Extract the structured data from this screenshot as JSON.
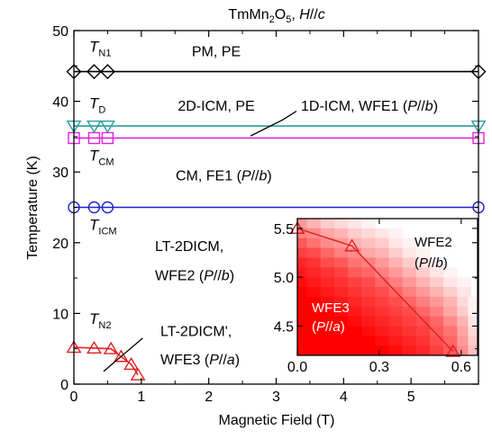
{
  "chart_data": [
    {
      "type": "scatter",
      "title": "TmMn2O5, H//c",
      "title_parts": [
        {
          "text": "TmMn",
          "style": "normal"
        },
        {
          "text": "2",
          "style": "sub"
        },
        {
          "text": "O",
          "style": "normal"
        },
        {
          "text": "5",
          "style": "sub"
        },
        {
          "text": ", ",
          "style": "normal"
        },
        {
          "text": "H",
          "style": "italic"
        },
        {
          "text": "//",
          "style": "normal"
        },
        {
          "text": "c",
          "style": "italic"
        }
      ],
      "xlabel": "Magnetic Field (T)",
      "ylabel": "Temperature (K)",
      "xlim": [
        0,
        6
      ],
      "ylim": [
        0,
        50
      ],
      "xticks": [
        "0",
        "1",
        "2",
        "3",
        "4",
        "5"
      ],
      "yticks": [
        "0",
        "10",
        "20",
        "30",
        "40",
        "50"
      ],
      "grid": false,
      "series": [
        {
          "key": "TN1",
          "marker": "diamond",
          "color": "#000000",
          "x": [
            0,
            0.3,
            0.5,
            6
          ],
          "y": [
            44.2,
            44.2,
            44.2,
            44.2
          ]
        },
        {
          "key": "TD",
          "marker": "triangle-down",
          "color": "#2a9d9d",
          "x": [
            0,
            0.3,
            0.5,
            6
          ],
          "y": [
            36.5,
            36.5,
            36.5,
            36.5
          ]
        },
        {
          "key": "TCM",
          "marker": "square",
          "color": "#e020e0",
          "x": [
            0,
            0.3,
            0.5,
            6
          ],
          "y": [
            34.8,
            34.8,
            34.8,
            34.8
          ]
        },
        {
          "key": "TICM",
          "marker": "circle",
          "color": "#2020d0",
          "x": [
            0,
            0.3,
            0.5,
            6
          ],
          "y": [
            25,
            25,
            25,
            25
          ]
        },
        {
          "key": "TN2",
          "marker": "triangle-up",
          "color": "#e02020",
          "x": [
            0,
            0.3,
            0.55,
            0.7,
            0.85,
            0.95
          ],
          "y": [
            5.2,
            5.1,
            5.0,
            3.9,
            2.8,
            1.3
          ]
        }
      ],
      "transition_labels": {
        "TN1": {
          "main": "T",
          "sub": "N1"
        },
        "TD": {
          "main": "T",
          "sub": "D"
        },
        "TCM": {
          "main": "T",
          "sub": "CM"
        },
        "TICM": {
          "main": "T",
          "sub": "ICM"
        },
        "TN2": {
          "main": "T",
          "sub": "N2"
        }
      },
      "phase_labels": {
        "pm_pe": [
          {
            "t": "PM, PE",
            "s": "normal"
          }
        ],
        "icm2d_pe": [
          {
            "t": "2D-ICM, PE",
            "s": "normal"
          }
        ],
        "icm1d": [
          {
            "t": "1D-ICM, WFE1 (",
            "s": "normal"
          },
          {
            "t": "P",
            "s": "italic"
          },
          {
            "t": "//",
            "s": "normal"
          },
          {
            "t": "b",
            "s": "italic"
          },
          {
            "t": ")",
            "s": "normal"
          }
        ],
        "cm_fe1": [
          {
            "t": "CM, FE1 (",
            "s": "normal"
          },
          {
            "t": "P",
            "s": "italic"
          },
          {
            "t": "//",
            "s": "normal"
          },
          {
            "t": "b",
            "s": "italic"
          },
          {
            "t": ")",
            "s": "normal"
          }
        ],
        "lt2dicm_1": [
          {
            "t": "LT-2DICM,",
            "s": "normal"
          }
        ],
        "lt2dicm_2": [
          {
            "t": "WFE2 (",
            "s": "normal"
          },
          {
            "t": "P",
            "s": "italic"
          },
          {
            "t": "//",
            "s": "normal"
          },
          {
            "t": "b",
            "s": "italic"
          },
          {
            "t": ")",
            "s": "normal"
          }
        ],
        "lt2dicmp_1": [
          {
            "t": "LT-2DICM',",
            "s": "normal"
          }
        ],
        "lt2dicmp_2": [
          {
            "t": "WFE3 (",
            "s": "normal"
          },
          {
            "t": "P",
            "s": "italic"
          },
          {
            "t": "//",
            "s": "normal"
          },
          {
            "t": "a",
            "s": "italic"
          },
          {
            "t": ")",
            "s": "normal"
          }
        ]
      }
    },
    {
      "type": "heatmap",
      "role": "inset",
      "xlim": [
        0,
        0.66
      ],
      "ylim": [
        4.2,
        5.6
      ],
      "xticks": [
        "0.0",
        "0.3",
        "0.6"
      ],
      "yticks": [
        "4.5",
        "5.0",
        "5.5"
      ],
      "colormap": {
        "low": "#ffffff",
        "high": "#ff0000"
      },
      "x_centers": [
        0.01,
        0.06,
        0.11,
        0.16,
        0.21,
        0.26,
        0.31,
        0.36,
        0.41,
        0.46,
        0.51,
        0.56,
        0.61,
        0.65
      ],
      "y_centers": [
        5.55,
        5.45,
        5.35,
        5.25,
        5.15,
        5.05,
        4.95,
        4.85,
        4.75,
        4.65,
        4.55,
        4.45,
        4.35,
        4.25
      ],
      "values": [
        [
          0.4,
          0.3,
          0.2,
          0.15,
          0.1,
          0.05,
          0,
          0,
          0,
          0,
          0,
          0,
          0,
          0
        ],
        [
          0.5,
          0.45,
          0.35,
          0.3,
          0.2,
          0.15,
          0.1,
          0.05,
          0,
          0,
          0,
          0,
          0,
          0
        ],
        [
          0.65,
          0.55,
          0.45,
          0.4,
          0.3,
          0.25,
          0.2,
          0.1,
          0.05,
          0,
          0,
          0,
          0,
          0
        ],
        [
          0.75,
          0.7,
          0.6,
          0.5,
          0.45,
          0.35,
          0.3,
          0.2,
          0.1,
          0.05,
          0,
          0,
          0,
          0
        ],
        [
          0.85,
          0.8,
          0.7,
          0.65,
          0.55,
          0.5,
          0.4,
          0.3,
          0.2,
          0.1,
          0.05,
          0,
          0,
          0
        ],
        [
          0.9,
          0.85,
          0.8,
          0.75,
          0.65,
          0.6,
          0.5,
          0.4,
          0.3,
          0.2,
          0.1,
          0.05,
          0,
          0
        ],
        [
          0.95,
          0.9,
          0.85,
          0.8,
          0.75,
          0.7,
          0.6,
          0.5,
          0.4,
          0.3,
          0.2,
          0.1,
          0.05,
          0
        ],
        [
          1,
          0.95,
          0.9,
          0.85,
          0.8,
          0.75,
          0.7,
          0.6,
          0.5,
          0.4,
          0.3,
          0.2,
          0.1,
          0
        ],
        [
          1,
          1,
          0.95,
          0.9,
          0.85,
          0.8,
          0.75,
          0.7,
          0.6,
          0.5,
          0.4,
          0.3,
          0.15,
          0.05
        ],
        [
          1,
          1,
          1,
          0.95,
          0.9,
          0.85,
          0.8,
          0.75,
          0.7,
          0.6,
          0.5,
          0.35,
          0.2,
          0.05
        ],
        [
          1,
          1,
          1,
          1,
          0.95,
          0.9,
          0.85,
          0.8,
          0.75,
          0.7,
          0.6,
          0.45,
          0.3,
          0.1
        ],
        [
          1,
          1,
          1,
          1,
          1,
          0.95,
          0.9,
          0.85,
          0.8,
          0.75,
          0.65,
          0.55,
          0.35,
          0.15
        ],
        [
          1,
          1,
          1,
          1,
          1,
          1,
          0.95,
          0.9,
          0.85,
          0.8,
          0.7,
          0.6,
          0.4,
          0.2
        ],
        [
          1,
          1,
          1,
          1,
          1,
          1,
          1,
          0.95,
          0.9,
          0.85,
          0.75,
          0.65,
          0.45,
          0.25
        ]
      ],
      "series": [
        {
          "marker": "triangle-up",
          "color": "#e02020",
          "x": [
            0,
            0.2,
            0.57
          ],
          "y": [
            5.5,
            5.32,
            4.24
          ]
        }
      ],
      "labels": {
        "wfe2_1": [
          {
            "t": "WFE2",
            "s": "normal"
          }
        ],
        "wfe2_2": [
          {
            "t": "(",
            "s": "normal"
          },
          {
            "t": "P",
            "s": "italic"
          },
          {
            "t": "//",
            "s": "normal"
          },
          {
            "t": "b",
            "s": "italic"
          },
          {
            "t": ")",
            "s": "normal"
          }
        ],
        "wfe3_1": [
          {
            "t": "WFE3",
            "s": "normal"
          }
        ],
        "wfe3_2": [
          {
            "t": "(",
            "s": "normal"
          },
          {
            "t": "P",
            "s": "italic"
          },
          {
            "t": "//",
            "s": "normal"
          },
          {
            "t": "a",
            "s": "italic"
          },
          {
            "t": ")",
            "s": "normal"
          }
        ]
      }
    }
  ]
}
